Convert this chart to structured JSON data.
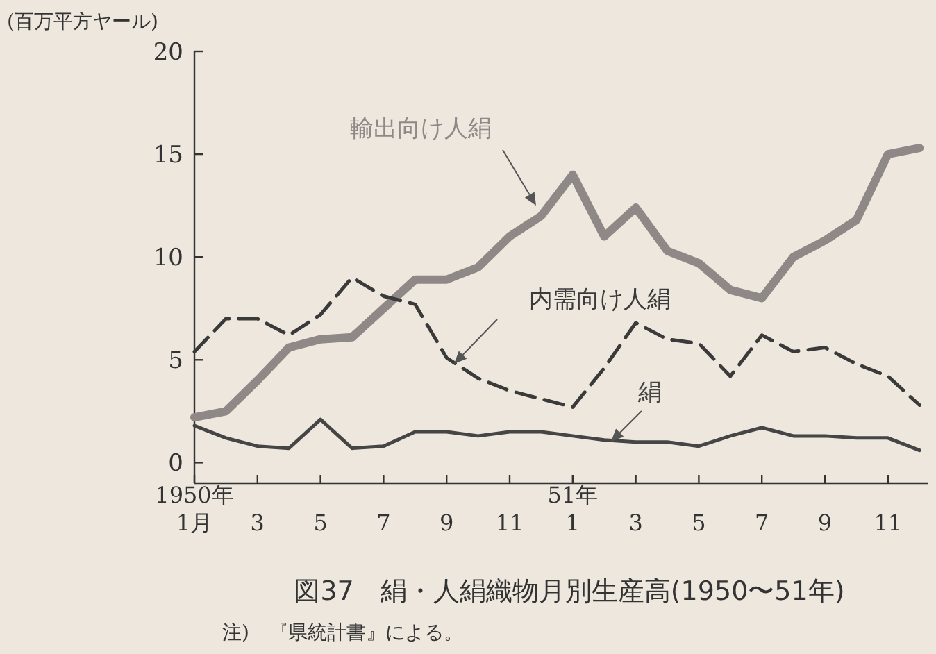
{
  "chart_data": {
    "type": "line",
    "title": "図37　絹・人絹織物月別生産高(1950〜51年)",
    "ylabel": "(百万平方ヤール)",
    "annotations": [
      "注)　『県統計書』による。"
    ],
    "categories": [
      "1950年\n1月",
      null,
      "3",
      null,
      "5",
      null,
      "7",
      null,
      "9",
      null,
      "11",
      null,
      "51年\n1",
      null,
      "3",
      null,
      "5",
      null,
      "7",
      null,
      "9",
      null,
      "11",
      null
    ],
    "ylim": [
      -1,
      20
    ],
    "yticks": [
      0,
      5,
      10,
      15,
      20
    ],
    "grid": false,
    "legend": false,
    "marker": "none",
    "series": [
      {
        "name": "輸出向け人絹",
        "color": "#8e8886",
        "line_style": "solid",
        "values": [
          2.2,
          2.5,
          4,
          5.6,
          6,
          6.1,
          7.5,
          8.9,
          8.9,
          9.5,
          11,
          12,
          14,
          11,
          12.4,
          10.3,
          9.7,
          8.4,
          8,
          10,
          10.8,
          11.8,
          15,
          15.3
        ]
      },
      {
        "name": "内需向け人絹",
        "color": "#3a3a3a",
        "line_style": "dashed",
        "values": [
          5.4,
          7,
          7,
          6.2,
          7.2,
          9,
          8.1,
          7.7,
          5.1,
          4.1,
          3.5,
          3.1,
          2.7,
          4.6,
          6.8,
          6,
          5.8,
          4.2,
          6.2,
          5.4,
          5.6,
          4.8,
          4.2,
          2.8
        ]
      },
      {
        "name": "絹",
        "color": "#454545",
        "line_style": "solid",
        "values": [
          1.8,
          1.2,
          0.8,
          0.7,
          2.1,
          0.7,
          0.8,
          1.5,
          1.5,
          1.3,
          1.5,
          1.5,
          1.3,
          1.1,
          1,
          1,
          0.8,
          1.3,
          1.7,
          1.3,
          1.3,
          1.2,
          1.2,
          0.6
        ]
      }
    ]
  }
}
